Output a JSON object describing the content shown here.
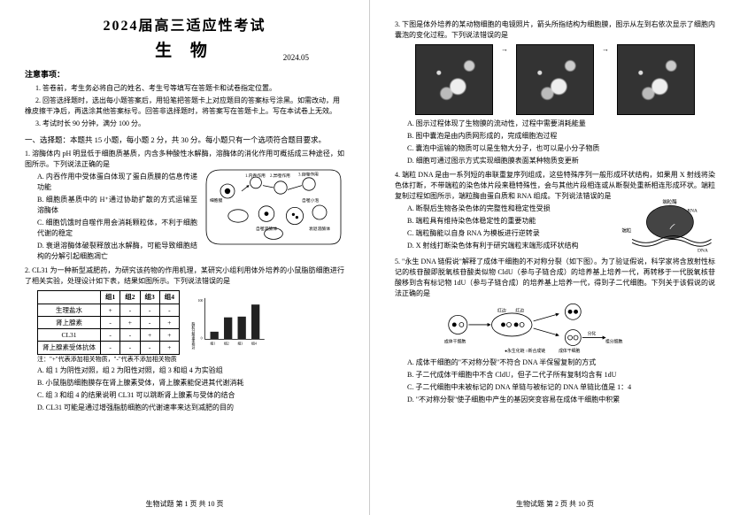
{
  "header": {
    "title_main": "2024届高三适应性考试",
    "title_sub": "生 物",
    "date": "2024.05"
  },
  "notice": {
    "heading": "注意事项：",
    "items": [
      "1. 答卷前，考生务必将自己的姓名、考生号等填写在答题卡和试卷指定位置。",
      "2. 回答选择题时，选出每小题答案后，用铅笔把答题卡上对应题目的答案标号涂黑。如需改动，用橡皮擦干净后，再选涂其他答案标号。回答非选择题时，将答案写在答题卡上。写在本试卷上无效。",
      "3. 考试时长 90 分钟，满分 100 分。"
    ]
  },
  "part1": {
    "heading": "一、选择题：本题共 15 小题，每小题 2 分，共 30 分。每小题只有一个选项符合题目要求。"
  },
  "q1": {
    "stem": "1. 溶酶体内 pH 明显低于细胞质基质，内含多种酸性水解酶，溶酶体的消化作用可概括成三种途径，如图所示。下列说法正确的是",
    "A": "A. 内吞作用中受体蛋白体现了蛋白质膜的信息传递功能",
    "B": "B. 细胞质基质中的 H⁺通过协助扩散的方式运输至溶酶体",
    "C": "C. 细胞饥饿时自噬作用会消耗颗粒体，不利于细胞代谢的稳定",
    "D": "D. 衰退溶酶体破裂释放出水解酶，可能导致细胞结构的分解引起细胞凋亡",
    "diagram_labels": {
      "l1": "1.内吞作用",
      "l2": "2.异噬作用",
      "l3": "3.自噬作用",
      "a": "细胞膜",
      "b": "食物颗粒",
      "c": "内体",
      "d": "初级溶酶体",
      "e": "次级溶酶体",
      "f": "自噬溶酶体",
      "g": "自噬小泡",
      "h": "衰退溶酶体",
      "i": "残渣排出",
      "j": "线粒体"
    }
  },
  "q2": {
    "stem": "2. CL31 为一种新型减肥药，为研究该药物的作用机理，某研究小组利用体外培养的小鼠脂肪细胞进行了相关实验，处理设计如下表，结果如图所示。下列说法错误的是",
    "table": {
      "header": [
        "",
        "组1",
        "组2",
        "组3",
        "组4"
      ],
      "rows": [
        [
          "生理盐水",
          "+",
          "-",
          "-",
          "-"
        ],
        [
          "肾上腺素",
          "-",
          "+",
          "-",
          "+"
        ],
        [
          "CL31",
          "-",
          "-",
          "+",
          "+"
        ],
        [
          "肾上腺素受体抗体",
          "-",
          "-",
          "-",
          "+"
        ]
      ],
      "note": "注：\"+\"代表添加相关物质，\"-\"代表不添加相关物质"
    },
    "chart": {
      "ylabel": "脂肪分解速率相对值",
      "ymax": 100,
      "bars": [
        {
          "label": "组1",
          "value": 20,
          "color": "#222"
        },
        {
          "label": "组2",
          "value": 58,
          "color": "#222"
        },
        {
          "label": "组3",
          "value": 60,
          "color": "#222"
        },
        {
          "label": "组4",
          "value": 92,
          "color": "#222"
        }
      ]
    },
    "A": "A. 组 1 为阴性对照，组 2 为阳性对照，组 3 和组 4 为实验组",
    "B": "B. 小鼠脂肪细胞膜存在肾上腺素受体，肾上腺素能促进其代谢消耗",
    "C": "C. 组 3 和组 4 的结果说明 CL31 可以跳断肾上腺素与受体的结合",
    "D": "D. CL31 可能是通过增强脂肪细胞的代谢速率来达到减肥的目的"
  },
  "q3": {
    "stem": "3. 下图是体外培养的某动物细胞的电镜照片，箭头所指结构为细胞膜，图示从左到右依次显示了细胞内囊泡的变化过程。下列说法错误的是",
    "A": "A. 图示过程体现了生物膜的流动性，过程中需要消耗能量",
    "B": "B. 图中囊泡是由内质网形成的，完成细胞泡过程",
    "C": "C. 囊泡中运输的物质可以是生物大分子，也可以是小分子物质",
    "D": "D. 细胞可通过图示方式实现细胞膜表面某种物质变更新"
  },
  "q4": {
    "stem": "4. 端粒 DNA 是由一系列短的串联重复序列组成，这些特殊序列一般形成环状结构，如果用 X 射线将染色体打断，不带端粒的染色体片段来稳特殊性，会与其他片段相连或从断裂处重新相连形成环状。端粒复制过程如图所示，端粒酶由蛋白质和 RNA 组成。下列说法错误的是",
    "diagram_labels": {
      "a": "端粒酶",
      "b": "RNA",
      "c": "端粒",
      "d": "DNA"
    },
    "A": "A. 断裂后生物各染色体的完整性和稳定性受损",
    "B": "B. 端粒具有维持染色体稳定性的重要功能",
    "C": "C. 端粒酶能以自身 RNA 为模板进行逆转录",
    "D": "D. X 射线打断染色体有利于研究端粒末端形成环状结构"
  },
  "q5": {
    "stem": "5. \"永生 DNA 链假说\"解释了成体干细胞的不对称分裂（如下图）。为了验证假说，科学家将含放射性标记的核苷酸即脱氧核苷酸类似物 CldU（参与子链合成）的培养基上培养一代，再转移于一代脱氧核苷酸移到含有标记物 1dU（参与子链合成）的培养基上培养一代，得到子二代细胞。下列关于该假说的说法正确的是",
    "diagram_labels": {
      "a": "成体干细胞",
      "b": "红边",
      "c": "红边",
      "d": "分化",
      "e": "成体干细胞",
      "f": "祖分细胞",
      "g": "●永生化链  ○新合成链"
    },
    "A": "A. 成体干细胞的\"不对称分裂\"不符合 DNA 半保留复制的方式",
    "B": "B. 子二代成体干细胞中不含 CldU，但子二代子所有复制均含有 1dU",
    "C": "C. 子二代细胞中未被标记的 DNA 单链与被标记的 DNA 单链比值是 1：4",
    "D": "D. \"不对称分裂\"使子细胞中产生的基因突变容易在成体干细胞中积累"
  },
  "footer": {
    "left": "生物试题  第 1 页  共 10 页",
    "right": "生物试题  第 2 页  共 10 页"
  }
}
